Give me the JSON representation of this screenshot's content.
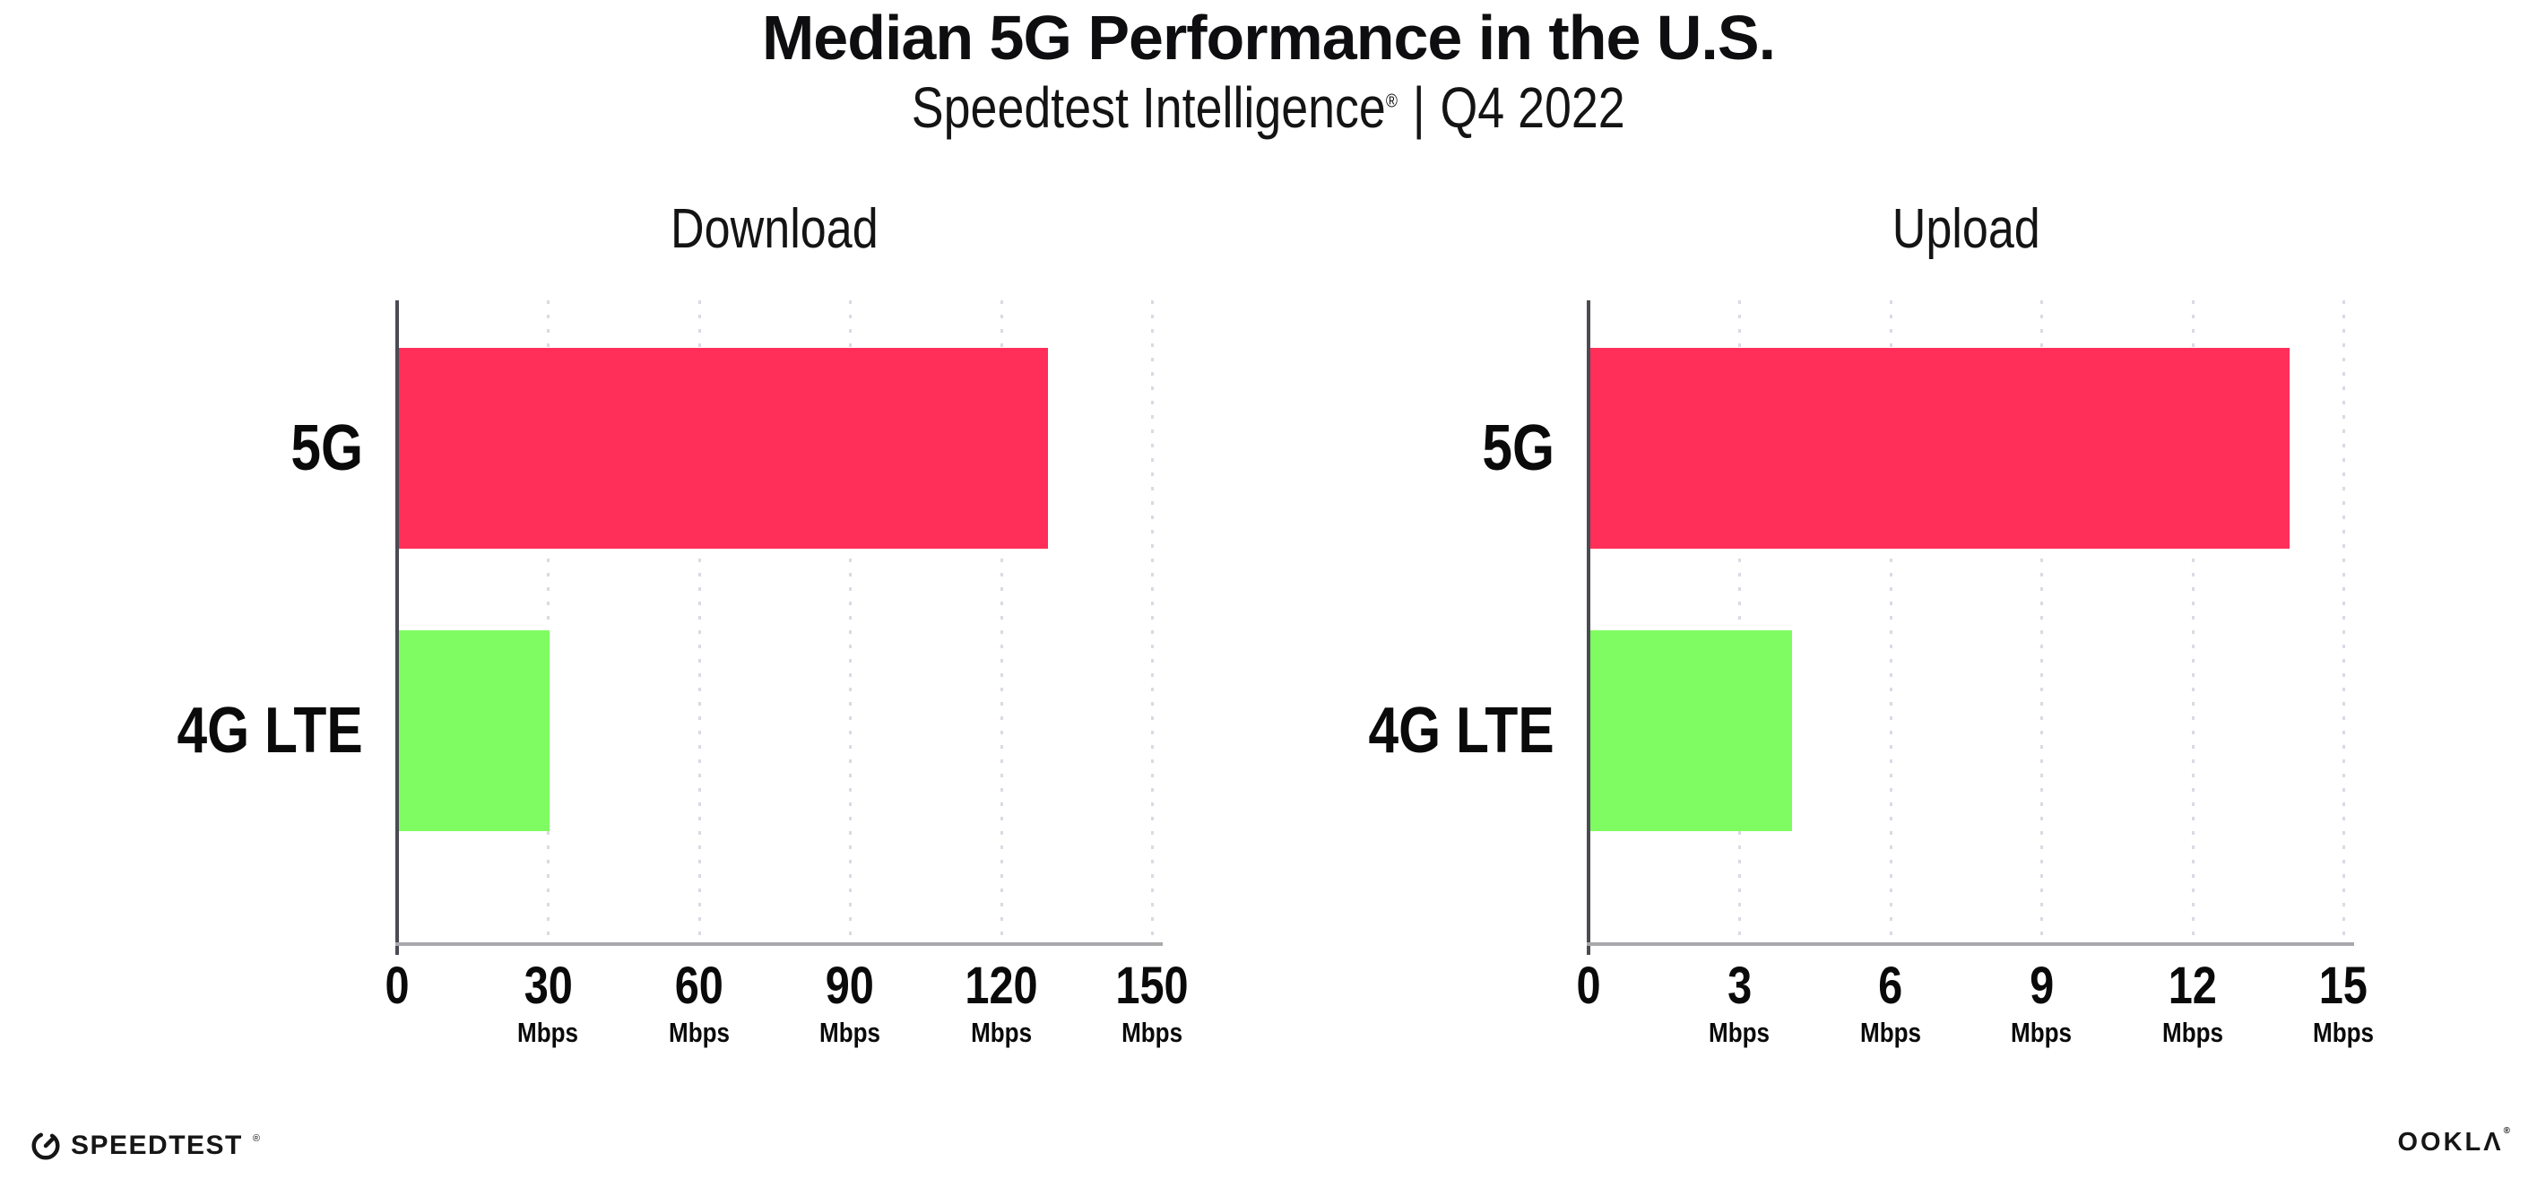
{
  "header": {
    "title": "Median 5G Performance in the U.S.",
    "subtitle": {
      "brand": "Speedtest Intelligence",
      "registered_mark": "®",
      "separator": "|",
      "period": "Q4 2022"
    }
  },
  "footer": {
    "speedtest_label": "SPEEDTEST",
    "speedtest_mark": "®",
    "ookla_label": "OOKLΛ",
    "ookla_mark": "®"
  },
  "colors": {
    "bar_5g": "#ff2f59",
    "bar_4g": "#7efc62",
    "y_axis": "#4b4b53",
    "x_axis": "#a9a9ad",
    "gridline": "#d9dae4",
    "text": "#0e0e10",
    "background": "#ffffff"
  },
  "chart_data": [
    {
      "type": "bar",
      "orientation": "horizontal",
      "title": "Download",
      "categories": [
        "5G",
        "4G LTE"
      ],
      "values": [
        129,
        30
      ],
      "unit": "Mbps",
      "xlim": [
        0,
        150
      ],
      "xticks": [
        0,
        30,
        60,
        90,
        120,
        150
      ],
      "tick_unit": "Mbps",
      "bar_colors": [
        "#ff2f59",
        "#7efc62"
      ],
      "grid": "dotted-vertical",
      "legend": "none"
    },
    {
      "type": "bar",
      "orientation": "horizontal",
      "title": "Upload",
      "categories": [
        "5G",
        "4G LTE"
      ],
      "values": [
        13.9,
        4
      ],
      "unit": "Mbps",
      "xlim": [
        0,
        15
      ],
      "xticks": [
        0,
        3,
        6,
        9,
        12,
        15
      ],
      "tick_unit": "Mbps",
      "bar_colors": [
        "#ff2f59",
        "#7efc62"
      ],
      "grid": "dotted-vertical",
      "legend": "none"
    }
  ]
}
